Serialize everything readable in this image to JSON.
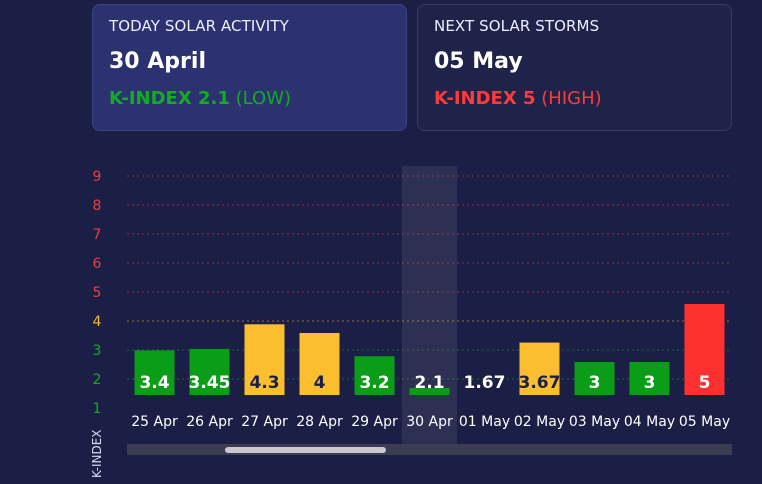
{
  "today": {
    "label": "TODAY SOLAR ACTIVITY",
    "date": "30 April",
    "k_text": "K-INDEX 2.1",
    "level": "(LOW)",
    "color": "#0fae21"
  },
  "next": {
    "label": "NEXT SOLAR STORMS",
    "date": "05 May",
    "k_text": "K-INDEX 5",
    "level": "(HIGH)",
    "color": "#ff3a3a"
  },
  "chart_data": {
    "type": "bar",
    "ylabel": "K-INDEX",
    "ylim": [
      0.5,
      9
    ],
    "yticks": [
      {
        "value": 1,
        "label": "1",
        "color": "#0fae21"
      },
      {
        "value": 2,
        "label": "2",
        "color": "#0fae21"
      },
      {
        "value": 3,
        "label": "3",
        "color": "#0fae21"
      },
      {
        "value": 4,
        "label": "4",
        "color": "#f6b72c"
      },
      {
        "value": 5,
        "label": "5",
        "color": "#e64040"
      },
      {
        "value": 6,
        "label": "6",
        "color": "#e64040"
      },
      {
        "value": 7,
        "label": "7",
        "color": "#e64040"
      },
      {
        "value": 8,
        "label": "8",
        "color": "#e64040"
      },
      {
        "value": 9,
        "label": "9",
        "color": "#e64040"
      }
    ],
    "categories": [
      "25 Apr",
      "26 Apr",
      "27 Apr",
      "28 Apr",
      "29 Apr",
      "30 Apr",
      "01 May",
      "02 May",
      "03 May",
      "04 May",
      "05 May"
    ],
    "values": [
      3.4,
      3.45,
      4.3,
      4,
      3.2,
      2.1,
      1.67,
      3.67,
      3,
      3,
      5
    ],
    "value_labels": [
      "3.4",
      "3.45",
      "4.3",
      "4",
      "3.2",
      "2.1",
      "1.67",
      "3.67",
      "3",
      "3",
      "5"
    ],
    "colors": [
      "#0a9e18",
      "#0a9e18",
      "#fbbe2e",
      "#fbbe2e",
      "#0a9e18",
      "#0a9e18",
      "#0a9e18",
      "#fbbe2e",
      "#0a9e18",
      "#0a9e18",
      "#ff3030"
    ],
    "label_colors": [
      "#ffffff",
      "#ffffff",
      "#1c1f45",
      "#1c1f45",
      "#ffffff",
      "#ffffff",
      "#ffffff",
      "#1c1f45",
      "#ffffff",
      "#ffffff",
      "#ffffff"
    ],
    "highlighted": "30 Apr",
    "grid": true
  }
}
